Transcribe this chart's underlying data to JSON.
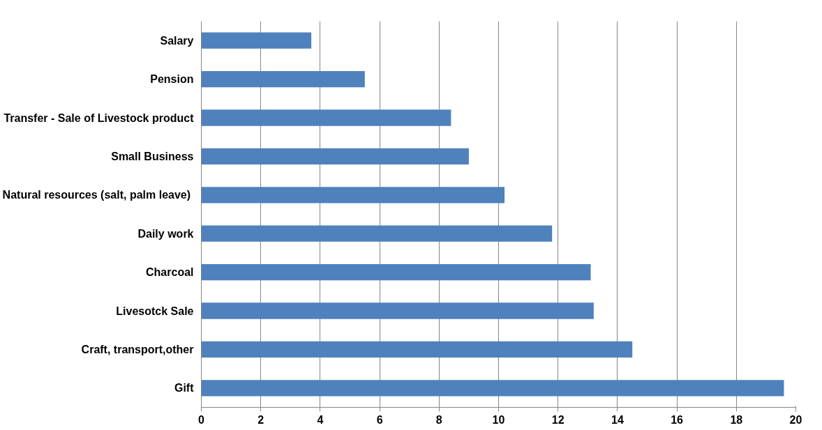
{
  "chart_data": {
    "type": "bar",
    "orientation": "horizontal",
    "categories": [
      "Salary",
      "Pension",
      "Transfer - Sale of Livestock product",
      "Small Business",
      "Natural resources (salt, palm  leave)",
      "Daily work",
      "Charcoal",
      "Livesotck Sale",
      "Craft, transport,other",
      "Gift"
    ],
    "values": [
      3.7,
      5.5,
      8.4,
      9.0,
      10.2,
      11.8,
      13.1,
      13.2,
      14.5,
      19.6
    ],
    "color": "#4f81bd",
    "xlim": [
      0,
      20
    ],
    "xticks": [
      0,
      2,
      4,
      6,
      8,
      10,
      12,
      14,
      16,
      18,
      20
    ],
    "grid": "x"
  }
}
